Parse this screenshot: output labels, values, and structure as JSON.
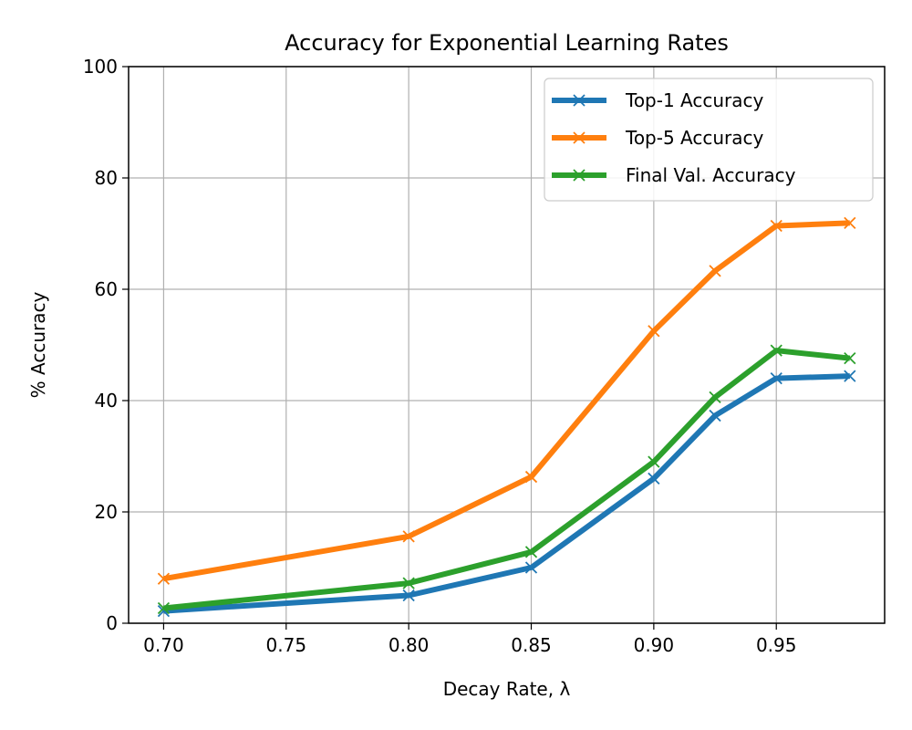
{
  "chart_data": {
    "type": "line",
    "title": "Accuracy for Exponential Learning Rates",
    "xlabel": "Decay Rate, λ",
    "ylabel": "% Accuracy",
    "xlim": [
      0.6857,
      0.9942
    ],
    "ylim": [
      0,
      100
    ],
    "xticks": [
      "0.70",
      "0.75",
      "0.80",
      "0.85",
      "0.90",
      "0.95"
    ],
    "yticks": [
      "0",
      "20",
      "40",
      "60",
      "80",
      "100"
    ],
    "grid": true,
    "legend_position": "top-right",
    "x": [
      0.7,
      0.8,
      0.85,
      0.9,
      0.925,
      0.95,
      0.98
    ],
    "series": [
      {
        "name": "Top-1 Accuracy",
        "color": "#1f77b4",
        "marker": "x",
        "values": [
          2.2,
          5.0,
          10.0,
          26.0,
          37.3,
          44.0,
          44.4
        ]
      },
      {
        "name": "Top-5 Accuracy",
        "color": "#ff7f0e",
        "marker": "x",
        "values": [
          8.0,
          15.6,
          26.3,
          52.5,
          63.3,
          71.4,
          71.9
        ]
      },
      {
        "name": "Final Val. Accuracy",
        "color": "#2ca02c",
        "marker": "x",
        "values": [
          2.7,
          7.2,
          12.8,
          29.0,
          40.6,
          49.0,
          47.6
        ]
      }
    ]
  }
}
